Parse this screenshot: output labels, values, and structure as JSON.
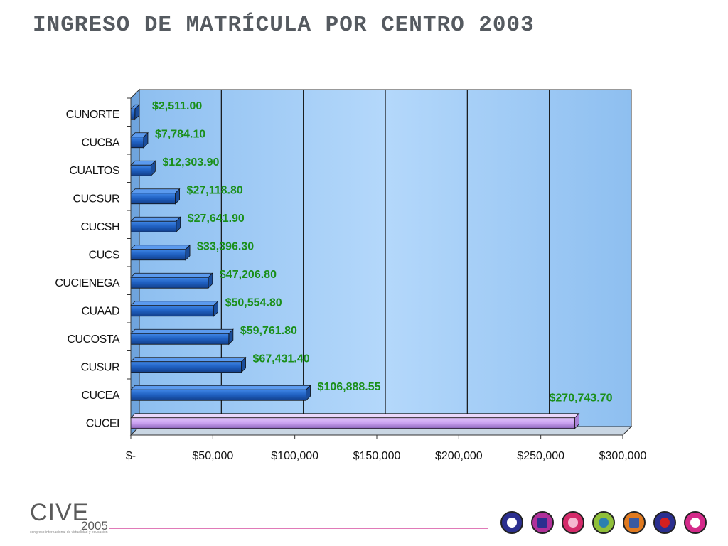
{
  "page": {
    "title": "INGRESO DE MATRÍCULA POR CENTRO 2003",
    "logo_text": "CIVE",
    "logo_year": "2005",
    "logo_tagline": "congreso internacional de virtualidad y educación"
  },
  "colors": {
    "plot_bg": "#9ec9f5",
    "bar_blue": "#1f5fc0",
    "bar_highlight": "#c9a0f0",
    "label_green": "#1a8f1a"
  },
  "footer_icons": [
    {
      "name": "target-icon",
      "bg": "#2b2f8f",
      "inner": "#ffffff"
    },
    {
      "name": "star-cross-icon",
      "bg": "#b0309a",
      "inner": "#2b2f8f"
    },
    {
      "name": "spiral-icon",
      "bg": "#d42a6a",
      "inner": "#f5b7d0"
    },
    {
      "name": "pentagon-icon",
      "bg": "#8fbf3a",
      "inner": "#2b7fb0"
    },
    {
      "name": "checker-icon",
      "bg": "#e07a20",
      "inner": "#3a5aa0"
    },
    {
      "name": "dot-icon",
      "bg": "#2b2f8f",
      "inner": "#d42020"
    },
    {
      "name": "burst-icon",
      "bg": "#d42a8a",
      "inner": "#ffffff"
    }
  ],
  "chart_data": {
    "type": "bar",
    "orientation": "horizontal",
    "categories": [
      "CUNORTE",
      "CUCBA",
      "CUALTOS",
      "CUCSUR",
      "CUCSH",
      "CUCS",
      "CUCIENEGA",
      "CUAAD",
      "CUCOSTA",
      "CUSUR",
      "CUCEA",
      "CUCEI"
    ],
    "values": [
      2511.0,
      7784.1,
      12303.9,
      27118.8,
      27641.9,
      33396.3,
      47206.8,
      50554.8,
      59761.8,
      67431.4,
      106888.55,
      270743.7
    ],
    "data_labels": [
      "$2,511.00",
      "$7,784.10",
      "$12,303.90",
      "$27,118.80",
      "$27,641.90",
      "$33,396.30",
      "$47,206.80",
      "$50,554.80",
      "$59,761.80",
      "$67,431.40",
      "$106,888.55",
      "$270,743.70"
    ],
    "label_positions": [
      2511,
      7784,
      12304,
      27119,
      27642,
      33396,
      47207,
      50555,
      59762,
      67431,
      106889,
      270744
    ],
    "xlim": [
      0,
      300000
    ],
    "xticks": [
      0,
      50000,
      100000,
      150000,
      200000,
      250000,
      300000
    ],
    "xtick_labels": [
      "$-",
      "$50,000",
      "$100,000",
      "$150,000",
      "$200,000",
      "$250,000",
      "$300,000"
    ],
    "highlight_category": "CUCEI",
    "grid": "vertical",
    "three_d": true
  }
}
